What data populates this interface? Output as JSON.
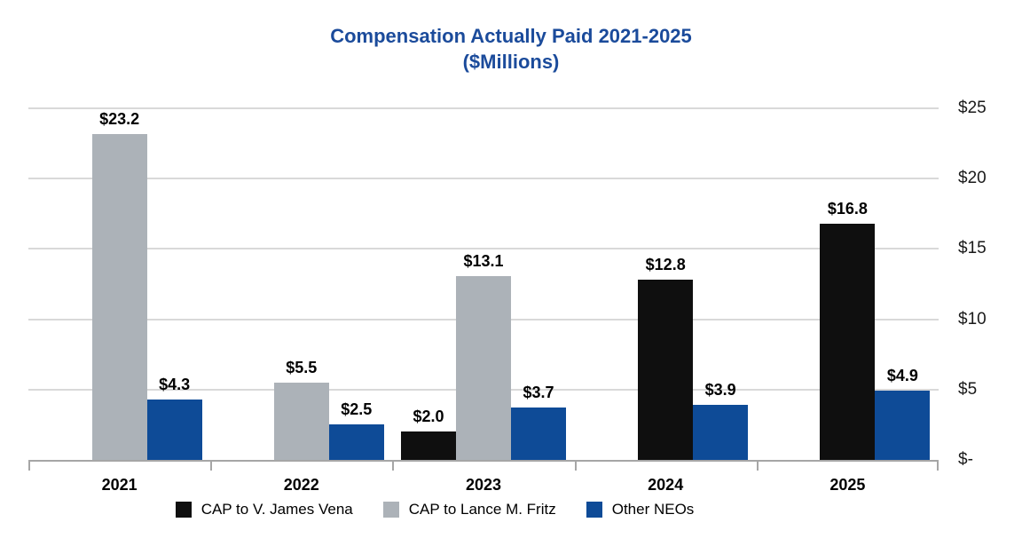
{
  "chart_data": {
    "type": "bar",
    "title": "Compensation Actually Paid 2021-2025",
    "subtitle": "($Millions)",
    "categories": [
      "2021",
      "2022",
      "2023",
      "2024",
      "2025"
    ],
    "series": [
      {
        "name": "CAP to V. James Vena",
        "color": "#0f0f0f",
        "values": [
          null,
          null,
          2.0,
          12.8,
          16.8
        ],
        "labels": [
          null,
          null,
          "$2.0",
          "$12.8",
          "$16.8"
        ],
        "slots": [
          null,
          null,
          0,
          1,
          1
        ]
      },
      {
        "name": "CAP to Lance M. Fritz",
        "color": "#acb2b8",
        "values": [
          23.2,
          5.5,
          13.1,
          null,
          null
        ],
        "labels": [
          "$23.2",
          "$5.5",
          "$13.1",
          null,
          null
        ],
        "slots": [
          1,
          1,
          1,
          null,
          null
        ]
      },
      {
        "name": "Other NEOs",
        "color": "#0e4b97",
        "values": [
          4.3,
          2.5,
          3.7,
          3.9,
          4.9
        ],
        "labels": [
          "$4.3",
          "$2.5",
          "$3.7",
          "$3.9",
          "$4.9"
        ],
        "slots": [
          2,
          2,
          2,
          2,
          2
        ]
      }
    ],
    "y_axis": {
      "max": 25,
      "ticks": [
        {
          "value": 25,
          "label": "$25"
        },
        {
          "value": 20,
          "label": "$20"
        },
        {
          "value": 15,
          "label": "$15"
        },
        {
          "value": 10,
          "label": "$10"
        },
        {
          "value": 5,
          "label": "$5"
        },
        {
          "value": 0,
          "label": "$-"
        }
      ]
    },
    "legend_position": "bottom",
    "grid": true,
    "colors": {
      "title": "#1b4b9b",
      "gridline": "#d9d9d9",
      "axis": "#a6a6a6",
      "label": "#000000"
    }
  }
}
